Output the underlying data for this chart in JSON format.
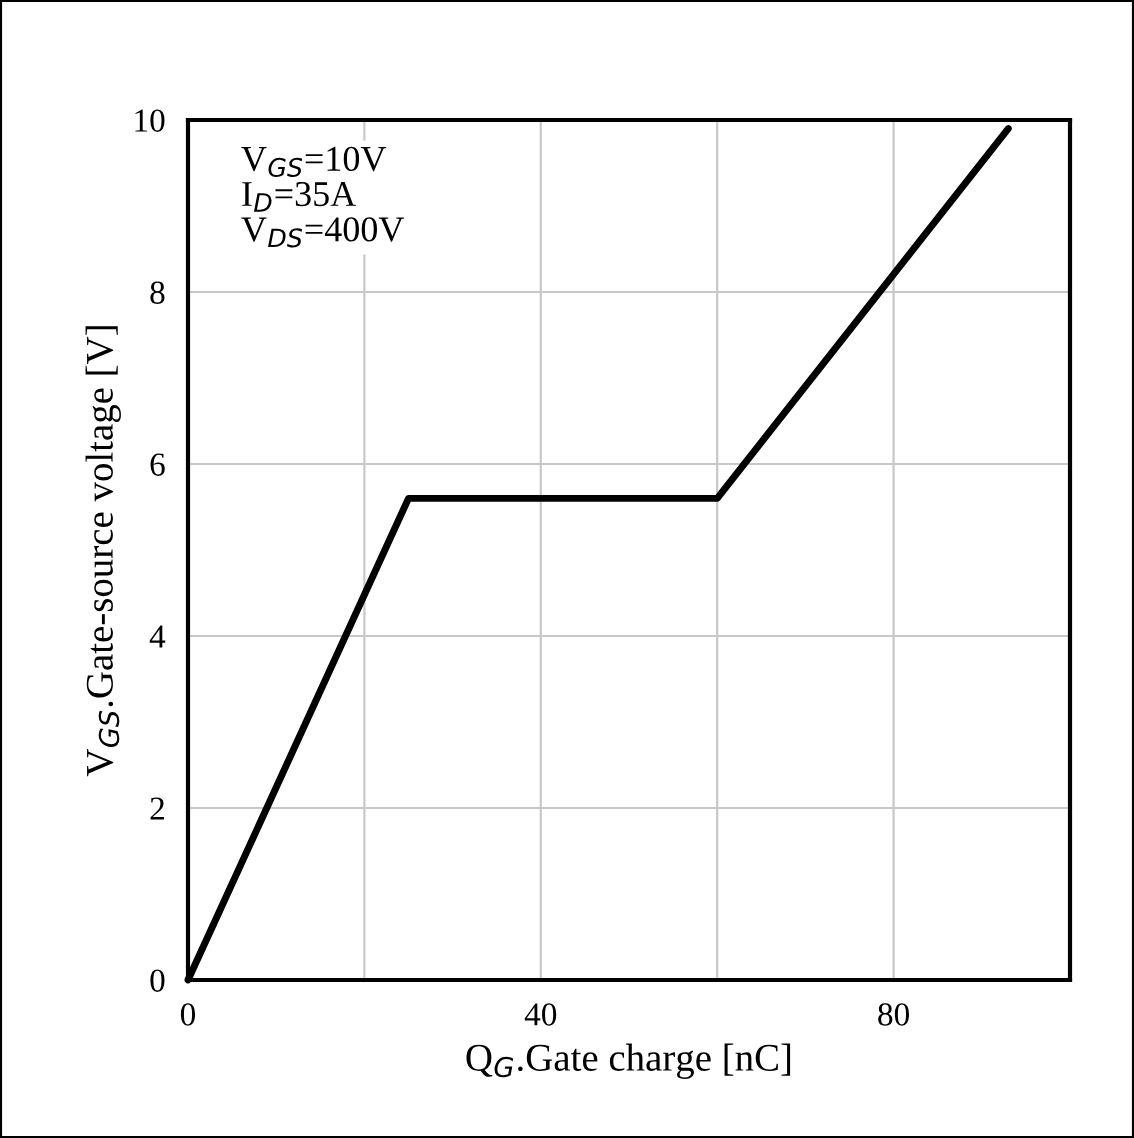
{
  "chart_data": {
    "type": "line",
    "xlabel": "Q$_{G}$.Gate charge [nC]",
    "ylabel": "V$_{GS}$.Gate-source voltage [V]",
    "annotations": [
      "V$_{GS}$=10V",
      "I$_{D}$=35A",
      "V$_{DS}$=400V"
    ],
    "x": [
      0,
      25,
      60,
      93
    ],
    "series": [
      {
        "color": "#000000",
        "values": [
          0,
          5.6,
          5.6,
          9.9
        ]
      }
    ],
    "xlim": [
      0,
      100
    ],
    "ylim": [
      0,
      10
    ],
    "xticks": [
      0,
      {
        "value": 20,
        "label": null
      },
      40,
      {
        "value": 60,
        "label": null
      },
      80,
      {
        "value": 100,
        "label": null
      }
    ],
    "yticks": [
      0,
      2,
      4,
      6,
      8,
      10
    ],
    "grid": true,
    "line_style": "solid",
    "marker": "none"
  }
}
